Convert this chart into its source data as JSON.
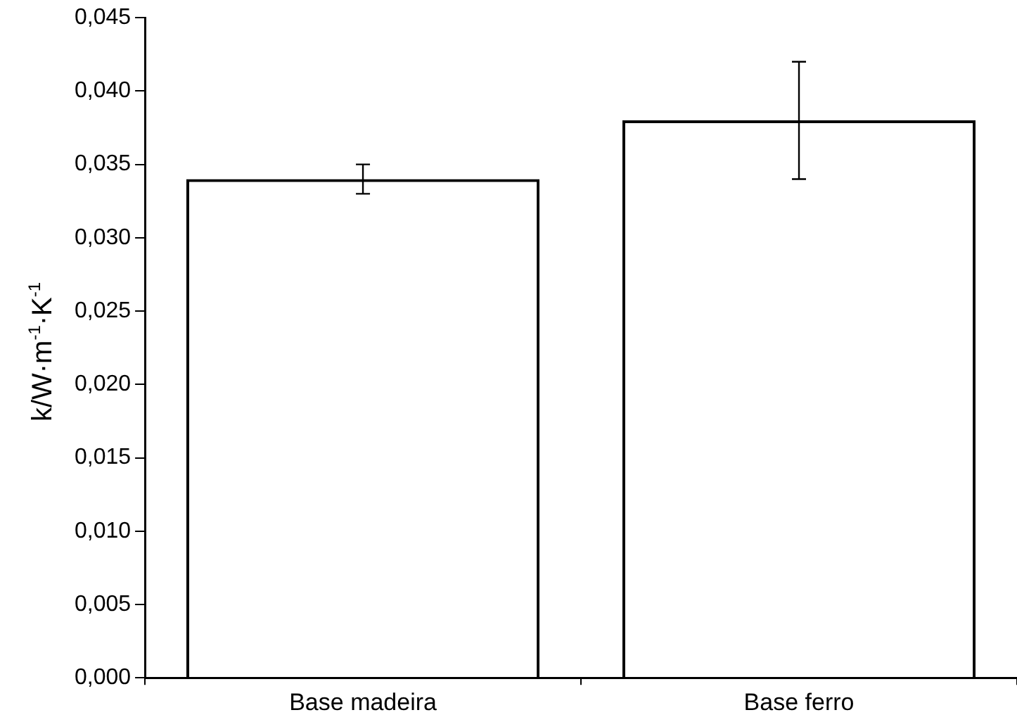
{
  "chart_data": {
    "type": "bar",
    "ylabel": "k/W·m$^{-1}$·K$^{-1}$",
    "categories": [
      "Base madeira",
      "Base ferro"
    ],
    "values": [
      0.034,
      0.038
    ],
    "errors": [
      0.001,
      0.004
    ],
    "color": "#000000",
    "ylim": [
      0,
      0.045
    ],
    "yticks": [
      {
        "value": 0,
        "label": "0,000"
      },
      {
        "value": 0.005,
        "label": "0,005"
      },
      {
        "value": 0.01,
        "label": "0,010"
      },
      {
        "value": 0.015,
        "label": "0,015"
      },
      {
        "value": 0.02,
        "label": "0,020"
      },
      {
        "value": 0.025,
        "label": "0,025"
      },
      {
        "value": 0.03,
        "label": "0,030"
      },
      {
        "value": 0.035,
        "label": "0,035"
      },
      {
        "value": 0.04,
        "label": "0,040"
      },
      {
        "value": 0.045,
        "label": "0,045"
      }
    ]
  }
}
